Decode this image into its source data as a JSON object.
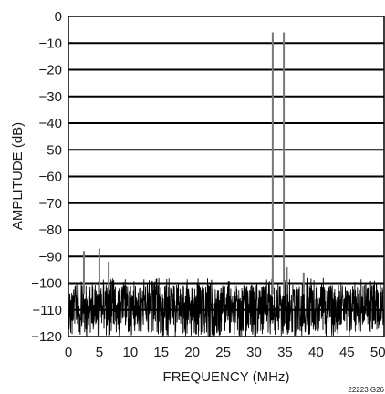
{
  "chart_data": {
    "type": "line",
    "title": "",
    "xlabel": "FREQUENCY (MHz)",
    "ylabel": "AMPLITUDE (dB)",
    "xlim": [
      0,
      51
    ],
    "ylim": [
      -120,
      0
    ],
    "x_ticks": [
      "0",
      "5",
      "10",
      "15",
      "20",
      "25",
      "30",
      "35",
      "40",
      "45",
      "50"
    ],
    "y_ticks": [
      "0",
      "−10",
      "−20",
      "−30",
      "−40",
      "−50",
      "−60",
      "−70",
      "−80",
      "−90",
      "−100",
      "−110",
      "−120"
    ],
    "grid": true,
    "noise_floor": {
      "min_db": -120,
      "max_db": -98
    },
    "series": [
      {
        "x": [
          2.5,
          5.0,
          6.5,
          33.0,
          34.8,
          35.3,
          38.0
        ],
        "y": [
          -88,
          -87,
          -92,
          -6,
          -6,
          -94,
          -96
        ]
      }
    ],
    "figure_id": "22223 G26",
    "colors": {
      "signal": "#000000",
      "tones": "#777777",
      "grid": "#000000"
    }
  }
}
